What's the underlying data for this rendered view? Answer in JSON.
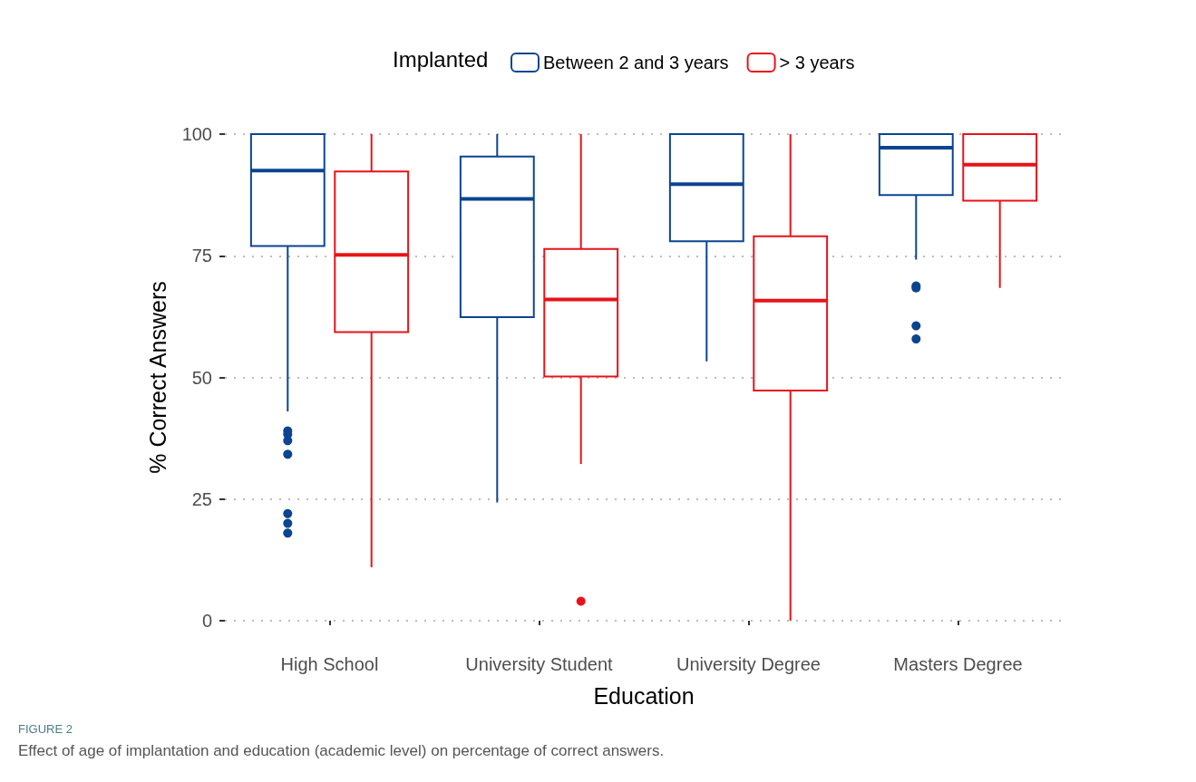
{
  "chart_data": {
    "type": "box",
    "xlabel": "Education",
    "ylabel": "% Correct Answers",
    "legend_title": "Implanted",
    "categories": [
      "High School",
      "University Student",
      "University Degree",
      "Masters Degree"
    ],
    "series": [
      {
        "name": "Between 2 and 3 years",
        "color": "#0b4591",
        "boxes": [
          {
            "low": 43,
            "q1": 77,
            "median": 92.5,
            "q3": 100,
            "high": 100,
            "outliers": [
              39,
              38.3,
              37,
              34.2,
              22,
              20,
              18
            ]
          },
          {
            "low": 24.3,
            "q1": 62.4,
            "median": 86.7,
            "q3": 95.4,
            "high": 100
          },
          {
            "low": 53.3,
            "q1": 78,
            "median": 89.7,
            "q3": 100,
            "high": 100
          },
          {
            "low": 74.2,
            "q1": 87.5,
            "median": 97.2,
            "q3": 100,
            "high": 100,
            "outliers": [
              68.8,
              68.4,
              60.6,
              57.9
            ]
          }
        ]
      },
      {
        "name": "> 3 years",
        "color": "#e8131a",
        "boxes": [
          {
            "low": 11,
            "q1": 59.3,
            "median": 75.2,
            "q3": 92.3,
            "high": 100
          },
          {
            "low": 32.2,
            "q1": 50.2,
            "median": 66,
            "q3": 76.4,
            "high": 100,
            "outliers": [
              4
            ]
          },
          {
            "low": 0,
            "q1": 47.3,
            "median": 65.8,
            "q3": 79,
            "high": 100
          },
          {
            "low": 68.4,
            "q1": 86.3,
            "median": 93.7,
            "q3": 100,
            "high": 100
          }
        ]
      }
    ],
    "ylim": [
      0,
      100
    ],
    "yticks": [
      0,
      25,
      50,
      75,
      100
    ],
    "grid": "y",
    "legend": "top",
    "annotations": [
      "FIGURE 2",
      "Effect of age of implantation and education (academic level) on percentage of correct answers."
    ]
  }
}
